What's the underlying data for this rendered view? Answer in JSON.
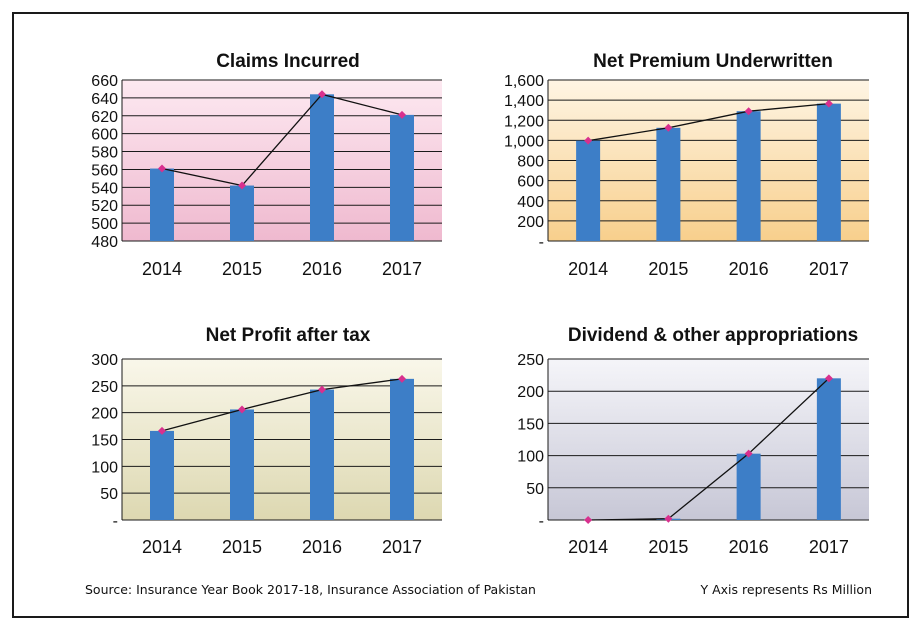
{
  "chart_data": [
    {
      "type": "bar",
      "title": "Claims Incurred",
      "categories": [
        "2014",
        "2015",
        "2016",
        "2017"
      ],
      "values": [
        561,
        542,
        644,
        621
      ],
      "overlay_line": true,
      "ylim": [
        480,
        660
      ],
      "yticks": [
        "480",
        "500",
        "520",
        "540",
        "560",
        "580",
        "600",
        "620",
        "640",
        "660"
      ],
      "grid": true,
      "bg_top": "#fde9f1",
      "bg_bottom": "#efb9cf"
    },
    {
      "type": "bar",
      "title": "Net Premium Underwritten",
      "categories": [
        "2014",
        "2015",
        "2016",
        "2017"
      ],
      "values": [
        997,
        1125,
        1290,
        1365
      ],
      "overlay_line": true,
      "ylim": [
        0,
        1600
      ],
      "yticks": [
        "-",
        "200",
        "400",
        "600",
        "800",
        "1,000",
        "1,200",
        "1,400",
        "1,600"
      ],
      "grid": true,
      "bg_top": "#fef5e4",
      "bg_bottom": "#f8cf8c"
    },
    {
      "type": "bar",
      "title": "Net Profit after tax",
      "categories": [
        "2014",
        "2015",
        "2016",
        "2017"
      ],
      "values": [
        166,
        206,
        243,
        263
      ],
      "overlay_line": true,
      "ylim": [
        0,
        300
      ],
      "yticks": [
        "-",
        "50",
        "100",
        "150",
        "200",
        "250",
        "300"
      ],
      "grid": true,
      "bg_top": "#f9f7ea",
      "bg_bottom": "#ddd8b1"
    },
    {
      "type": "bar",
      "title": "Dividend & other appropriations",
      "categories": [
        "2014",
        "2015",
        "2016",
        "2017"
      ],
      "values": [
        0,
        2,
        103,
        220
      ],
      "overlay_line": true,
      "ylim": [
        0,
        250
      ],
      "yticks": [
        "-",
        "50",
        "100",
        "150",
        "200",
        "250"
      ],
      "grid": true,
      "bg_top": "#f5f5f9",
      "bg_bottom": "#c7c7d6"
    }
  ],
  "footer": {
    "source": "Source: Insurance Year Book 2017-18, Insurance Association of Pakistan",
    "units": "Y Axis represents Rs Million"
  },
  "colors": {
    "bar": "#3d7ec7",
    "line": "#111111",
    "marker": "#d8308e",
    "grid": "#1a1a1a"
  }
}
